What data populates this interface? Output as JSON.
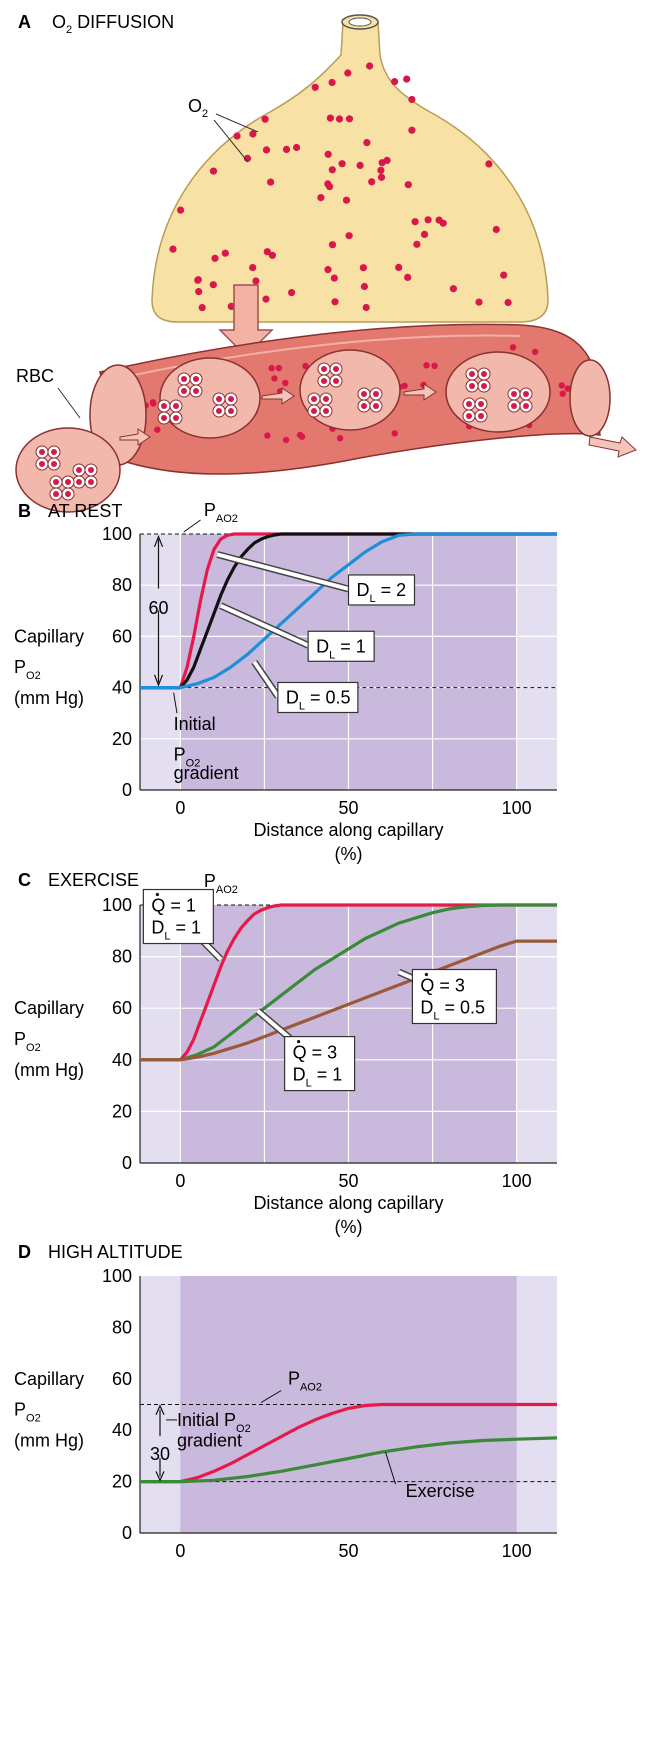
{
  "panel_a": {
    "letter": "A",
    "title": "O2 DIFFUSION",
    "title_main": "O",
    "title_sub": "2",
    "title_rest": " DIFFUSION",
    "o2_label_main": "O",
    "o2_label_sub": "2",
    "rbc_label": "RBC",
    "colors": {
      "alveolus": "#f8e1a4",
      "capillary": "#e2786e",
      "rbc": "#f3b8ac",
      "dot": "#d8174b"
    }
  },
  "chart_data": [
    {
      "id": "B",
      "type": "line",
      "panel_letter": "B",
      "title": "AT REST",
      "ylabel_line1": "Capillary",
      "ylabel_main": "P",
      "ylabel_sub": "O2",
      "ylabel_unit": "(mm Hg)",
      "xlabel": "Distance along capillary",
      "xlabel_unit": "(%)",
      "xlim": [
        -12,
        112
      ],
      "ylim": [
        0,
        100
      ],
      "xticks": [
        "0",
        "50",
        "100"
      ],
      "yticks": [
        "0",
        "20",
        "40",
        "60",
        "80",
        "100"
      ],
      "grid": true,
      "alveolar_label_main": "P",
      "alveolar_label_sub": "AO2",
      "alveolar_value": 100,
      "start_value": 40,
      "gradient_value": "60",
      "gradient_label_line1": "Initial",
      "gradient_label_main": "P",
      "gradient_label_sub": "O2",
      "gradient_label_line2": "gradient",
      "series": [
        {
          "callout_main": "D",
          "callout_sub": "L",
          "callout_rest": " = 2",
          "color": "#e8194a",
          "x": [
            -12,
            0,
            2,
            4,
            6,
            8,
            10,
            12,
            14,
            16,
            20,
            25,
            112
          ],
          "y": [
            40,
            40,
            48,
            60,
            74,
            86,
            94,
            98,
            99.5,
            100,
            100,
            100,
            100
          ]
        },
        {
          "callout_main": "D",
          "callout_sub": "L",
          "callout_rest": " = 1",
          "color": "#111111",
          "x": [
            -12,
            0,
            2,
            4,
            6,
            8,
            10,
            12,
            14,
            16,
            18,
            20,
            22,
            24,
            26,
            28,
            30,
            34,
            112
          ],
          "y": [
            40,
            40,
            43,
            48,
            55,
            62,
            69,
            76,
            82,
            87,
            91,
            94,
            96.5,
            98,
            99,
            99.6,
            100,
            100,
            100
          ]
        },
        {
          "callout_main": "D",
          "callout_sub": "L",
          "callout_rest": " = 0.5",
          "color": "#1e8fd8",
          "x": [
            -12,
            0,
            5,
            10,
            15,
            20,
            25,
            30,
            35,
            40,
            45,
            50,
            55,
            60,
            65,
            70,
            112
          ],
          "y": [
            40,
            40,
            41.5,
            44,
            48,
            53,
            59,
            65,
            71,
            77,
            83,
            88,
            93,
            97,
            99.5,
            100,
            100
          ]
        }
      ]
    },
    {
      "id": "C",
      "type": "line",
      "panel_letter": "C",
      "title": "EXERCISE",
      "ylabel_line1": "Capillary",
      "ylabel_main": "P",
      "ylabel_sub": "O2",
      "ylabel_unit": "(mm Hg)",
      "xlabel": "Distance along capillary",
      "xlabel_unit": "(%)",
      "xlim": [
        -12,
        112
      ],
      "ylim": [
        0,
        100
      ],
      "xticks": [
        "0",
        "50",
        "100"
      ],
      "yticks": [
        "0",
        "20",
        "40",
        "60",
        "80",
        "100"
      ],
      "grid": true,
      "alveolar_label_main": "P",
      "alveolar_label_sub": "AO2",
      "alveolar_value": 100,
      "series": [
        {
          "callout_q": "Q",
          "callout_q_rest": " = 1",
          "callout_main": "D",
          "callout_sub": "L",
          "callout_rest": " = 1",
          "color": "#e8194a",
          "x": [
            -12,
            0,
            2,
            4,
            6,
            8,
            10,
            12,
            14,
            16,
            18,
            20,
            22,
            24,
            26,
            28,
            30,
            34,
            112
          ],
          "y": [
            40,
            40,
            43,
            48,
            55,
            62,
            69,
            76,
            82,
            87,
            91,
            94,
            96.5,
            98,
            99,
            99.6,
            100,
            100,
            100
          ]
        },
        {
          "callout_q": "Q",
          "callout_q_rest": " = 3",
          "callout_main": "D",
          "callout_sub": "L",
          "callout_rest": " = 1",
          "color": "#3a8a3a",
          "x": [
            -12,
            0,
            5,
            10,
            15,
            20,
            25,
            30,
            35,
            40,
            45,
            50,
            55,
            60,
            65,
            70,
            75,
            80,
            85,
            90,
            95,
            100,
            112
          ],
          "y": [
            40,
            40,
            42,
            45,
            50,
            55,
            60,
            65,
            70,
            75,
            79,
            83,
            87,
            90,
            93,
            95,
            97,
            98.5,
            99.3,
            99.8,
            100,
            100,
            100
          ]
        },
        {
          "callout_q": "Q",
          "callout_q_rest": " = 3",
          "callout_main": "D",
          "callout_sub": "L",
          "callout_rest": " = 0.5",
          "color": "#9a5a3a",
          "x": [
            -12,
            0,
            5,
            10,
            15,
            20,
            25,
            30,
            40,
            50,
            60,
            70,
            80,
            90,
            95,
            100,
            112
          ],
          "y": [
            40,
            40,
            41,
            42.5,
            44.5,
            46.5,
            49,
            51.5,
            56.5,
            61.5,
            66.5,
            71.5,
            76.5,
            81.5,
            84,
            86,
            86
          ]
        }
      ]
    },
    {
      "id": "D",
      "type": "line",
      "panel_letter": "D",
      "title": "HIGH ALTITUDE",
      "ylabel_line1": "Capillary",
      "ylabel_main": "P",
      "ylabel_sub": "O2",
      "ylabel_unit": "(mm Hg)",
      "xlim": [
        -12,
        112
      ],
      "ylim": [
        0,
        100
      ],
      "xticks": [
        "0",
        "50",
        "100"
      ],
      "yticks": [
        "0",
        "20",
        "40",
        "60",
        "80",
        "100"
      ],
      "grid": false,
      "alveolar_label_main": "P",
      "alveolar_label_sub": "AO2",
      "alveolar_value": 50,
      "start_value": 20,
      "gradient_value": "30",
      "gradient_label_line1_main": "Initial P",
      "gradient_label_sub": "O2",
      "gradient_label_line2": "gradient",
      "series": [
        {
          "name": "",
          "color": "#e8194a",
          "x": [
            -12,
            0,
            5,
            10,
            15,
            20,
            25,
            30,
            35,
            40,
            45,
            50,
            55,
            60,
            112
          ],
          "y": [
            20,
            20,
            21.5,
            24,
            27,
            30.5,
            34,
            37.5,
            41,
            44,
            46.5,
            48.5,
            49.6,
            50,
            50
          ]
        },
        {
          "name": "Exercise",
          "color": "#3a8a3a",
          "x": [
            -12,
            0,
            10,
            20,
            30,
            40,
            50,
            60,
            70,
            80,
            90,
            100,
            112
          ],
          "y": [
            20,
            20,
            20.5,
            22,
            24,
            26.5,
            29,
            31.5,
            33.5,
            35,
            36,
            36.5,
            37
          ]
        }
      ]
    }
  ]
}
